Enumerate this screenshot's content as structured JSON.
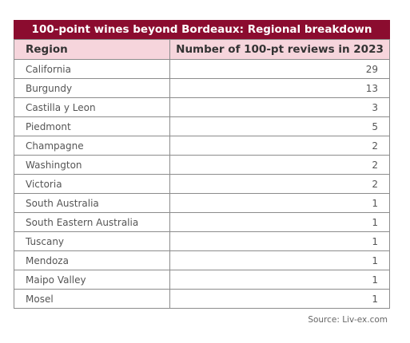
{
  "chart_data": {
    "type": "table",
    "title": "100-point wines beyond Bordeaux: Regional breakdown",
    "columns": [
      "Region",
      "Number of 100-pt reviews in 2023"
    ],
    "rows": [
      {
        "region": "California",
        "count": 29
      },
      {
        "region": "Burgundy",
        "count": 13
      },
      {
        "region": "Castilla y Leon",
        "count": 3
      },
      {
        "region": "Piedmont",
        "count": 5
      },
      {
        "region": "Champagne",
        "count": 2
      },
      {
        "region": "Washington",
        "count": 2
      },
      {
        "region": "Victoria",
        "count": 2
      },
      {
        "region": "South Australia",
        "count": 1
      },
      {
        "region": "South Eastern Australia",
        "count": 1
      },
      {
        "region": "Tuscany",
        "count": 1
      },
      {
        "region": "Mendoza",
        "count": 1
      },
      {
        "region": "Maipo Valley",
        "count": 1
      },
      {
        "region": "Mosel",
        "count": 1
      }
    ],
    "source": "Source: Liv-ex.com"
  },
  "colors": {
    "title_background": "#8b0c2f",
    "header_background": "#f6d5dc",
    "border": "#8c8c8c"
  }
}
